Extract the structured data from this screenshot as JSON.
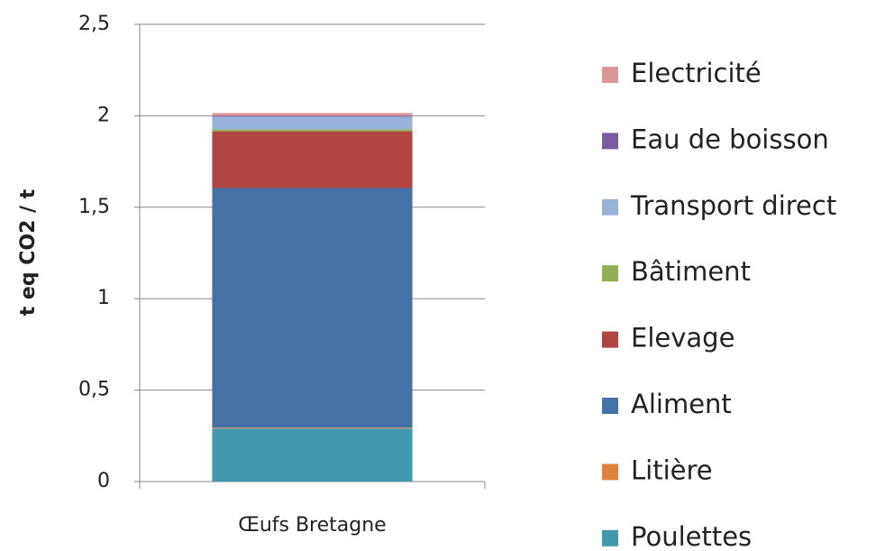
{
  "chart_data": {
    "type": "bar",
    "stacked": true,
    "ylabel": "t eq CO2 / t",
    "categories": [
      "Œufs Bretagne"
    ],
    "series": [
      {
        "name": "Poulettes",
        "color": "#4198af",
        "values": [
          0.29
        ]
      },
      {
        "name": "Litière",
        "color": "#e0833a",
        "values": [
          0.005
        ]
      },
      {
        "name": "Aliment",
        "color": "#4471a6",
        "values": [
          1.31
        ]
      },
      {
        "name": "Elevage",
        "color": "#b04440",
        "values": [
          0.31
        ]
      },
      {
        "name": "Bâtiment",
        "color": "#8fb151",
        "values": [
          0.01
        ]
      },
      {
        "name": "Transport direct",
        "color": "#98b2d8",
        "values": [
          0.07
        ]
      },
      {
        "name": "Eau de boisson",
        "color": "#7a5ba0",
        "values": [
          0.005
        ]
      },
      {
        "name": "Electricité",
        "color": "#d99896",
        "values": [
          0.015
        ]
      }
    ],
    "ylim": [
      0,
      2.5
    ],
    "yticks": [
      0,
      {
        "value": 0.5,
        "label": "0,5"
      },
      1,
      {
        "value": 1.5,
        "label": "1,5"
      },
      2,
      {
        "value": 2.5,
        "label": "2,5"
      }
    ],
    "grid": true,
    "legend": "right"
  }
}
